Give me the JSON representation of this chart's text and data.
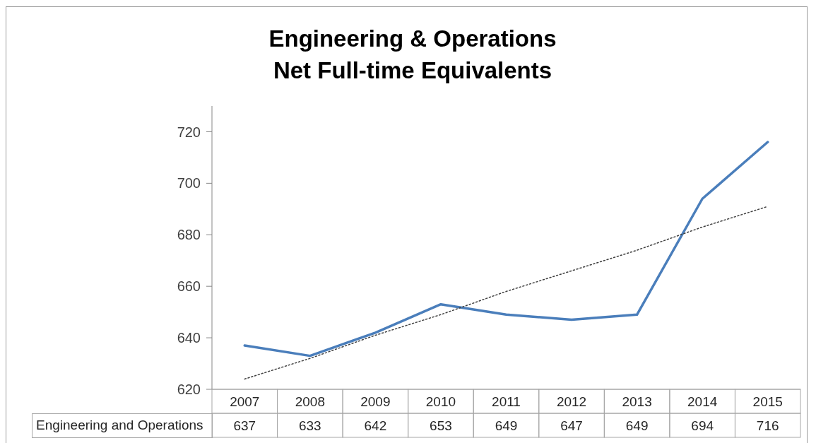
{
  "chart_data": {
    "type": "line",
    "title": "Engineering & Operations\nNet Full-time Equivalents",
    "categories": [
      "2007",
      "2008",
      "2009",
      "2010",
      "2011",
      "2012",
      "2013",
      "2014",
      "2015"
    ],
    "series": [
      {
        "name": "Engineering and Operations",
        "color": "#4a7ebb",
        "values": [
          637,
          633,
          642,
          653,
          649,
          647,
          649,
          694,
          716
        ],
        "value_labels": [
          "637",
          "633",
          "642",
          "653",
          "649",
          "647",
          "649",
          "694",
          "716"
        ]
      },
      {
        "type": "line",
        "values": [
          624,
          632,
          641,
          649,
          658,
          666,
          674,
          683,
          691
        ],
        "color": "#404040",
        "line_style": "dotted"
      }
    ],
    "ylim": [
      620,
      730
    ],
    "yticks": [
      620,
      640,
      660,
      680,
      700,
      720
    ],
    "grid": false,
    "legend": false,
    "marker": "none",
    "line_style": "solid"
  }
}
